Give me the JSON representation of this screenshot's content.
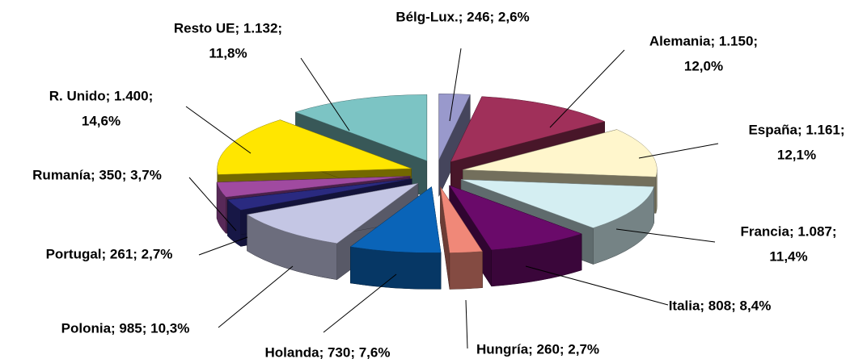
{
  "chart_data": {
    "type": "pie3d",
    "labels": [
      [
        "Bélg-Lux.; 246; 2,6%"
      ],
      [
        "Alemania; 1.150;",
        "12,0%"
      ],
      [
        "España; 1.161;",
        "12,1%"
      ],
      [
        "Francia; 1.087;",
        "11,4%"
      ],
      [
        "Italia; 808; 8,4%"
      ],
      [
        "Hungría; 260; 2,7%"
      ],
      [
        "Holanda; 730; 7,6%"
      ],
      [
        "Polonia; 985; 10,3%"
      ],
      [
        "Portugal; 261; 2,7%"
      ],
      [
        "Rumanía; 350; 3,7%"
      ],
      [
        "R. Unido; 1.400;",
        "14,6%"
      ],
      [
        "Resto UE; 1.132;",
        "11,8%"
      ]
    ],
    "values": [
      246,
      1150,
      1161,
      1087,
      808,
      260,
      730,
      985,
      261,
      350,
      1400,
      1132
    ],
    "colors": [
      "#9999cc",
      "#a0305a",
      "#fff6cc",
      "#d4eef2",
      "#6a0a6a",
      "#f08878",
      "#0a64b8",
      "#c4c6e4",
      "#2a2a80",
      "#a04aa0",
      "#ffe600",
      "#7cc4c4"
    ]
  }
}
